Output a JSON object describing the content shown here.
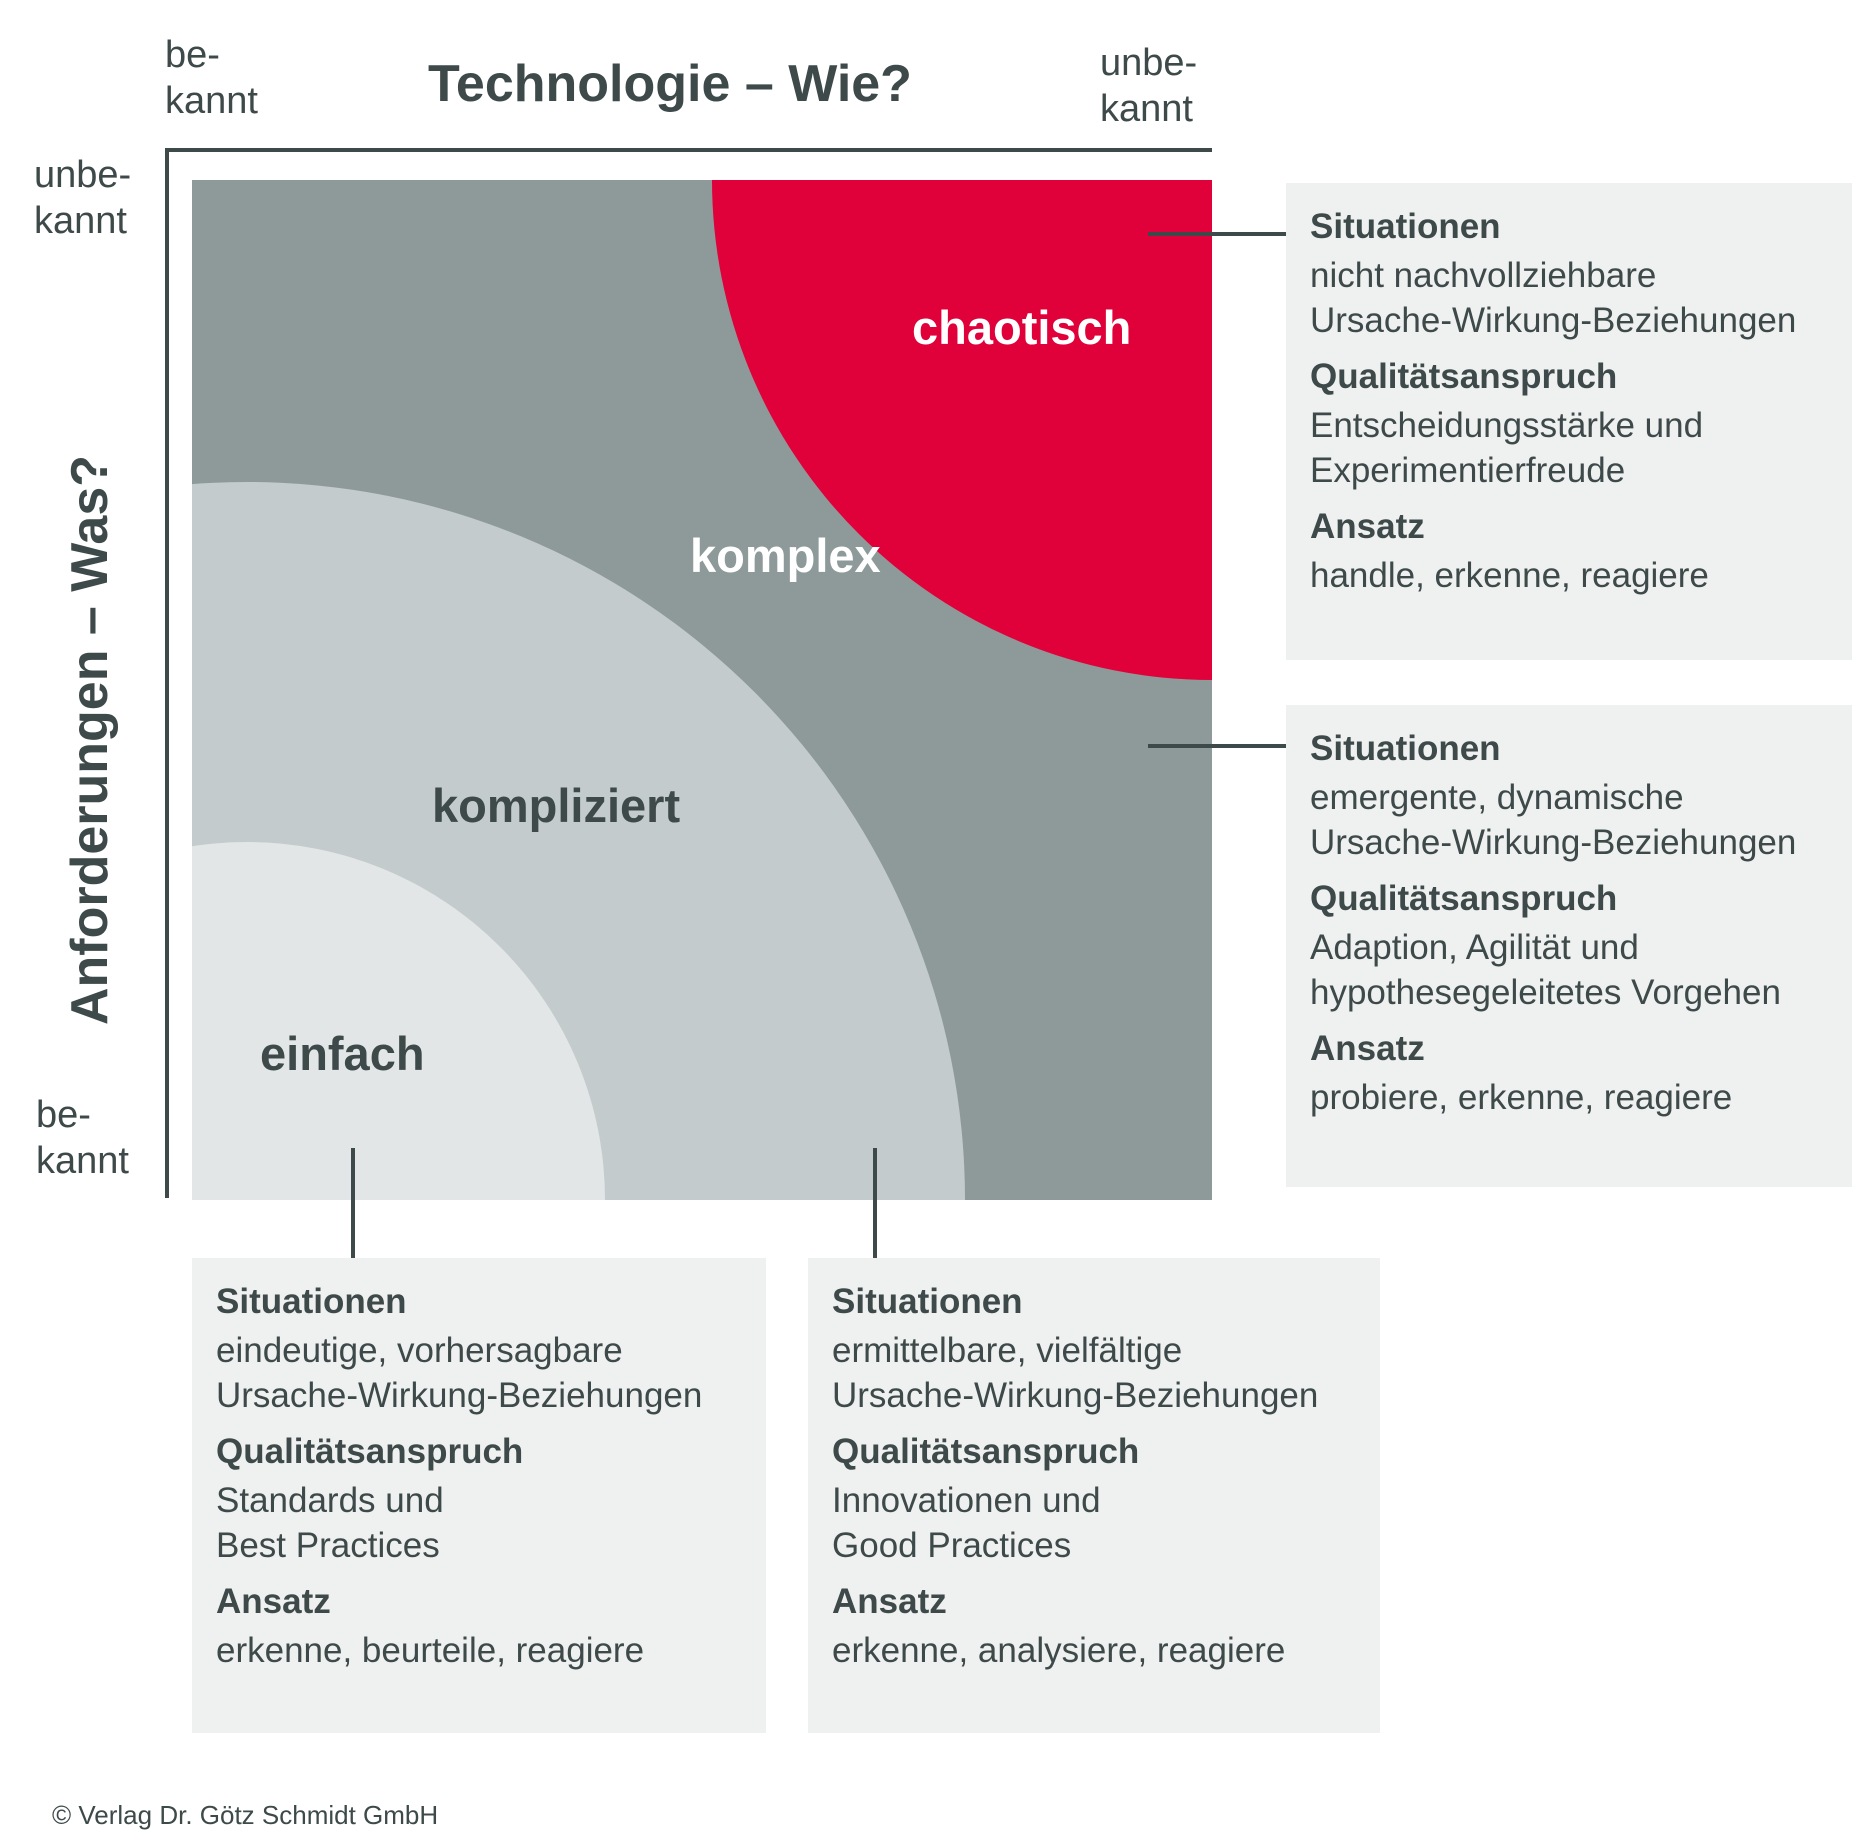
{
  "x_axis": {
    "title": "Technologie – Wie?",
    "left_label": "be-\nkannt",
    "right_label": "unbe-\nkannt"
  },
  "y_axis": {
    "title": "Anforderungen – Was?",
    "top_label": "unbe-\nkannt",
    "bottom_label": "be-\nkannt"
  },
  "zones": {
    "chaotic": {
      "label": "chaotisch",
      "color": "#e0003a"
    },
    "complex": {
      "label": "komplex",
      "color": "#8e9a9a"
    },
    "complicated": {
      "label": "kompliziert",
      "color": "#c4cbcc"
    },
    "simple": {
      "label": "einfach",
      "color": "#e3e6e6"
    }
  },
  "boxes": {
    "chaotic": {
      "h1": "Situationen",
      "t1": "nicht nachvollziehbare\nUrsache-Wirkung-Beziehungen",
      "h2": "Qualitätsanspruch",
      "t2": "Entscheidungsstärke und\nExperimentierfreude",
      "h3": "Ansatz",
      "t3": "handle, erkenne, reagiere"
    },
    "complex": {
      "h1": "Situationen",
      "t1": "emergente, dynamische\nUrsache-Wirkung-Beziehungen",
      "h2": "Qualitätsanspruch",
      "t2": "Adaption, Agilität und\nhypothesegeleitetes Vorgehen",
      "h3": "Ansatz",
      "t3": "probiere, erkenne, reagiere"
    },
    "simple": {
      "h1": "Situationen",
      "t1": "eindeutige, vorhersagbare\nUrsache-Wirkung-Beziehungen",
      "h2": "Qualitätsanspruch",
      "t2": "Standards und\nBest Practices",
      "h3": "Ansatz",
      "t3": "erkenne, beurteile, reagiere"
    },
    "complicated": {
      "h1": "Situationen",
      "t1": "ermittelbare, vielfältige\nUrsache-Wirkung-Beziehungen",
      "h2": "Qualitätsanspruch",
      "t2": "Innovationen und\nGood Practices",
      "h3": "Ansatz",
      "t3": "erkenne, analysiere, reagiere"
    }
  },
  "copyright": "© Verlag Dr. Götz Schmidt GmbH"
}
